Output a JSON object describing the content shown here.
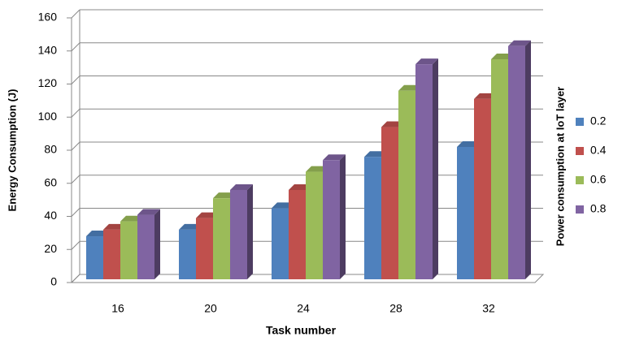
{
  "chart_data": {
    "type": "bar3d",
    "x_label": "Task number",
    "y_label": "Energy Consumption (J)",
    "legend_title": "Power consumption at IoT layer",
    "categories": [
      "16",
      "20",
      "24",
      "28",
      "32"
    ],
    "series": [
      {
        "name": "0.2",
        "color": "#4f81bd",
        "values": [
          26,
          30,
          43,
          74,
          80
        ]
      },
      {
        "name": "0.4",
        "color": "#c0504d",
        "values": [
          30,
          37,
          54,
          92,
          109
        ]
      },
      {
        "name": "0.6",
        "color": "#9bbb59",
        "values": [
          35,
          49,
          65,
          114,
          133
        ]
      },
      {
        "name": "0.8",
        "color": "#8064a2",
        "values": [
          39,
          54,
          72,
          130,
          141
        ]
      }
    ],
    "ylim": [
      0,
      160
    ],
    "yticks": [
      0,
      20,
      40,
      60,
      80,
      100,
      120,
      140,
      160
    ],
    "grid": true,
    "legend": "right"
  }
}
